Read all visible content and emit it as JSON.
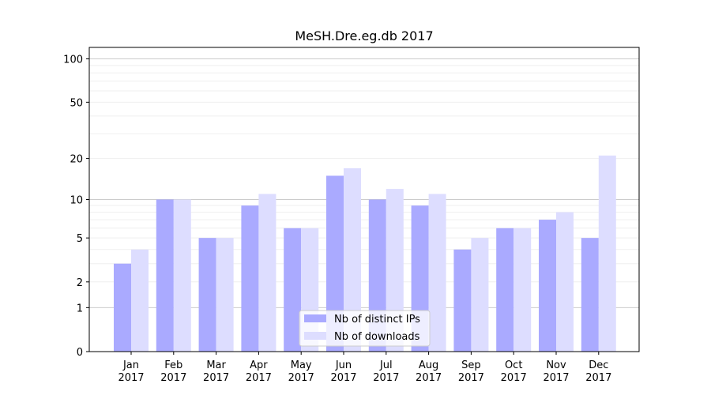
{
  "chart_data": {
    "type": "bar",
    "title": "MeSH.Dre.eg.db 2017",
    "xlabel": "",
    "ylabel": "",
    "y_scale": "log1p",
    "y_ticks": [
      0,
      1,
      2,
      5,
      10,
      20,
      50,
      100
    ],
    "ylim": [
      0,
      120
    ],
    "categories": [
      [
        "Jan",
        "2017"
      ],
      [
        "Feb",
        "2017"
      ],
      [
        "Mar",
        "2017"
      ],
      [
        "Apr",
        "2017"
      ],
      [
        "May",
        "2017"
      ],
      [
        "Jun",
        "2017"
      ],
      [
        "Jul",
        "2017"
      ],
      [
        "Aug",
        "2017"
      ],
      [
        "Sep",
        "2017"
      ],
      [
        "Oct",
        "2017"
      ],
      [
        "Nov",
        "2017"
      ],
      [
        "Dec",
        "2017"
      ]
    ],
    "series": [
      {
        "name": "Nb of distinct IPs",
        "color": "#aaaaff",
        "values": [
          3,
          10,
          5,
          9,
          6,
          15,
          10,
          9,
          4,
          6,
          7,
          5
        ]
      },
      {
        "name": "Nb of downloads",
        "color": "#ddddff",
        "values": [
          4,
          10,
          5,
          11,
          6,
          17,
          12,
          11,
          5,
          6,
          8,
          21
        ]
      }
    ],
    "legend_position": "bottom-center",
    "grid": true
  }
}
